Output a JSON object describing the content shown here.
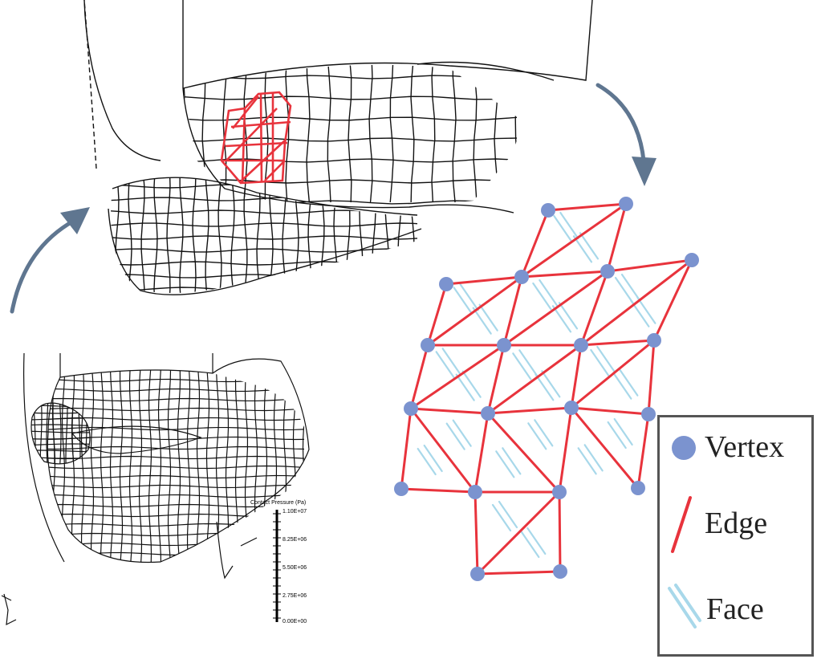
{
  "colors": {
    "vertex": "#7b93cf",
    "edge": "#e8333c",
    "face": "#a8d8ea",
    "arrow": "#5f7690",
    "mesh_line": "#111111",
    "legend_border": "#555555"
  },
  "icons": [
    "curved-arrow-icon",
    "vertex-dot-icon",
    "edge-line-icon",
    "face-hatch-icon"
  ],
  "legend": {
    "vertex_label": "Vertex",
    "edge_label": "Edge",
    "face_label": "Face"
  },
  "scale_bar": {
    "title": "Contact Pressure (Pa)",
    "ticks": [
      "1.10E+07",
      "8.25E+06",
      "5.50E+06",
      "2.75E+06",
      "0.00E+00"
    ]
  }
}
